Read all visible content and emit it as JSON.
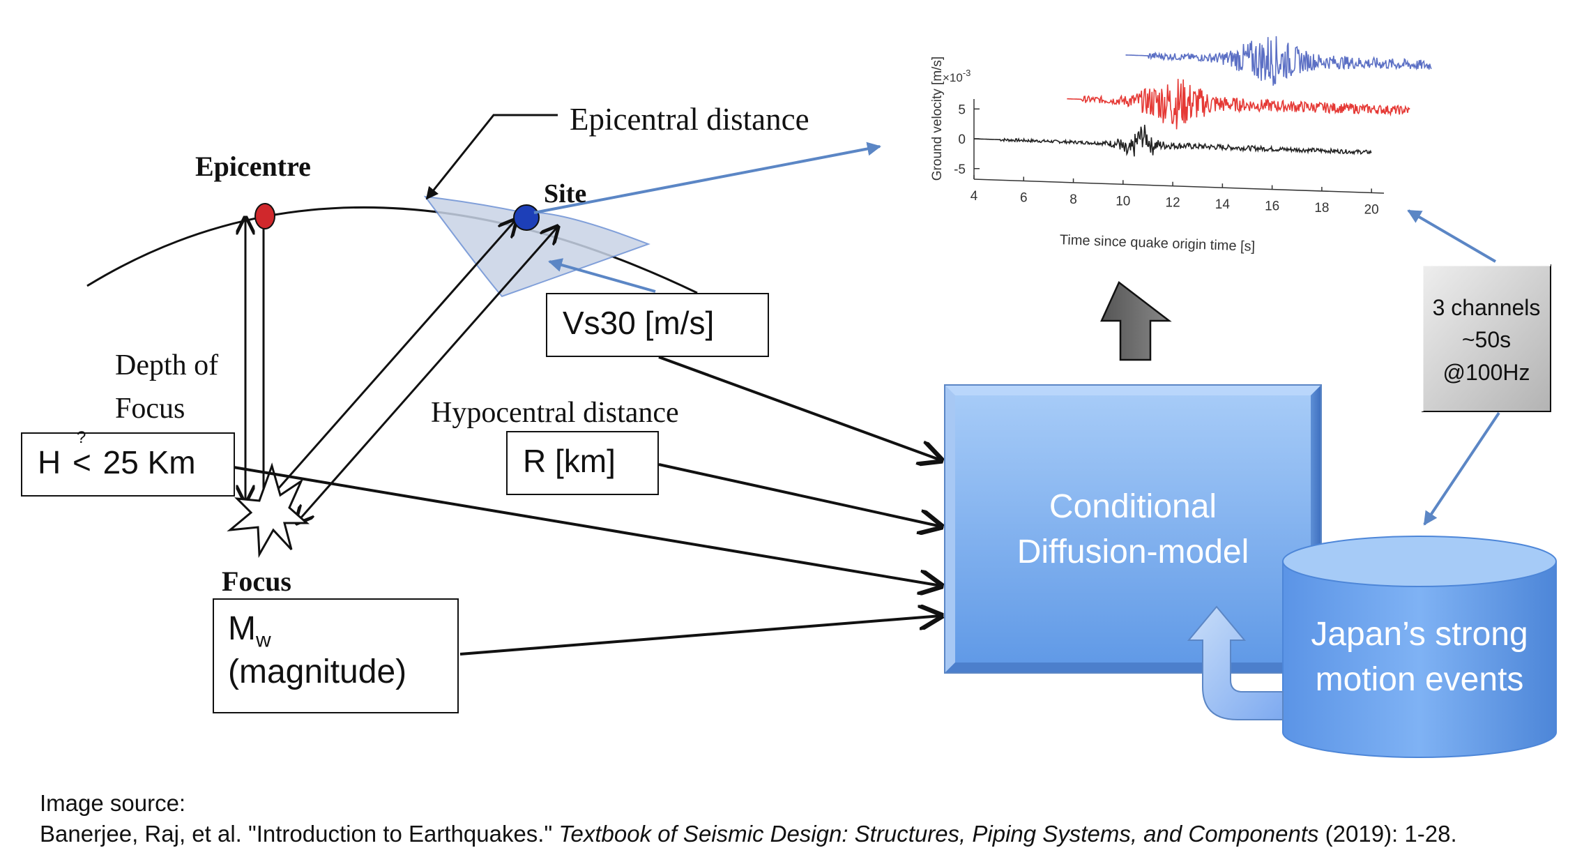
{
  "geometry_labels": {
    "epicentre": "Epicentre",
    "site": "Site",
    "epicentral_distance": "Epicentral distance",
    "depth_of_focus_line1": "Depth of",
    "depth_of_focus_line2": "Focus",
    "hypocentral_distance": "Hypocentral distance",
    "focus": "Focus"
  },
  "inputs": {
    "vs30": "Vs30 [m/s]",
    "depth_prefix": "H",
    "depth_question": "?",
    "depth_symbol": "<",
    "depth_value": "25 Km",
    "distance": "R [km]",
    "magnitude_symbol": "M",
    "magnitude_sub": "w",
    "magnitude_desc": "(magnitude)"
  },
  "model": {
    "line1": "Conditional",
    "line2": "Diffusion-model"
  },
  "database": {
    "line1": "Japan’s strong",
    "line2": "motion events"
  },
  "channels_note": {
    "line1": "3 channels",
    "line2": "~50s",
    "line3": "@100Hz"
  },
  "chart_data": {
    "type": "line",
    "title": "",
    "xlabel": "Time since quake origin time [s]",
    "ylabel": "Ground velocity [m/s]",
    "y_exponent": "×10",
    "y_exponent_power": "-3",
    "xticks": [
      4,
      6,
      8,
      10,
      12,
      14,
      16,
      18,
      20
    ],
    "yticks": [
      5,
      0,
      -5
    ],
    "xlim": [
      4,
      20.5
    ],
    "ylim": [
      -6,
      6
    ],
    "grid": false,
    "view": "3d-oblique",
    "series": [
      {
        "color": "#222222",
        "onset_s": 5.0,
        "peak_s": 10.5
      },
      {
        "color": "#e53935",
        "onset_s": 6.8,
        "peak_s": 10.4
      },
      {
        "color": "#5b6fc4",
        "onset_s": 8.9,
        "peak_s": 13.6
      }
    ]
  },
  "source": {
    "heading": "Image source:",
    "citation_prefix": "Banerjee, Raj, et al. \"Introduction to Earthquakes.\" ",
    "citation_journal": "Textbook of Seismic Design: Structures, Piping Systems, and Components",
    "citation_suffix": " (2019): 1-28."
  },
  "colors": {
    "epicentre_dot": "#d0282c",
    "site_dot": "#1d3fb8",
    "model_fill": "#7fb0f0",
    "database_fill": "#6ea5ef",
    "note_fill": "#c8c8c8",
    "pointer": "#5b86c5"
  }
}
